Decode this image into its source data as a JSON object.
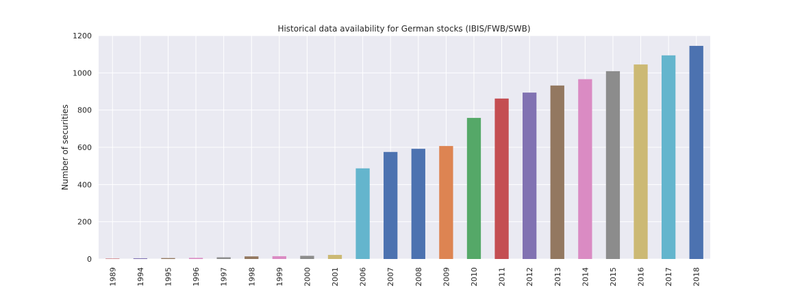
{
  "chart_data": {
    "type": "bar",
    "title": "Historical data availability for German stocks (IBIS/FWB/SWB)",
    "xlabel": "",
    "ylabel": "Number of securities",
    "ylim": [
      0,
      1200
    ],
    "yticks": [
      0,
      200,
      400,
      600,
      800,
      1000,
      1200
    ],
    "grid": true,
    "categories": [
      "1989",
      "1994",
      "1995",
      "1996",
      "1997",
      "1998",
      "1999",
      "2000",
      "2001",
      "2006",
      "2007",
      "2008",
      "2009",
      "2010",
      "2011",
      "2012",
      "2013",
      "2014",
      "2015",
      "2016",
      "2017",
      "2018"
    ],
    "values": [
      2,
      4,
      5,
      6,
      9,
      14,
      15,
      17,
      22,
      487,
      575,
      592,
      607,
      758,
      862,
      894,
      932,
      966,
      1009,
      1045,
      1094,
      1145
    ],
    "colors": [
      "#c44e52",
      "#8172b2",
      "#937860",
      "#da8bc3",
      "#8c8c8c",
      "#937860",
      "#da8bc3",
      "#8c8c8c",
      "#ccb974",
      "#64b5cd",
      "#4c72b0",
      "#4c72b0",
      "#dd8452",
      "#55a868",
      "#c44e52",
      "#8172b2",
      "#937860",
      "#da8bc3",
      "#8c8c8c",
      "#ccb974",
      "#64b5cd",
      "#4c72b0"
    ]
  }
}
